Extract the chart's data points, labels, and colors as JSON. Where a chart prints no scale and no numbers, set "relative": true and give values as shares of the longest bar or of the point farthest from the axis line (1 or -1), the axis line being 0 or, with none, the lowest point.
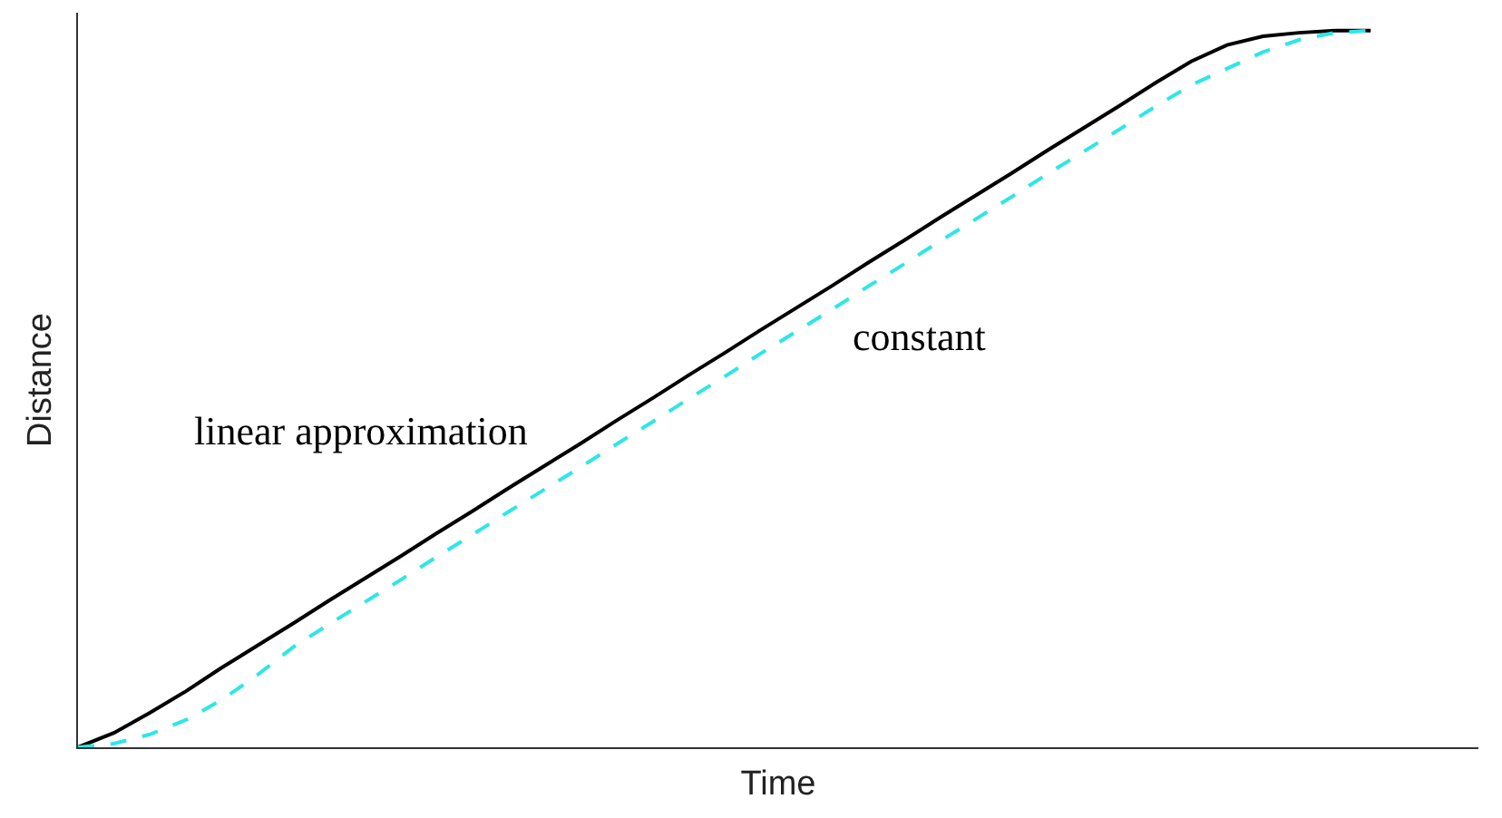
{
  "chart_data": {
    "type": "line",
    "relative": true,
    "xlabel": "Time",
    "ylabel": "Distance",
    "marker": "none",
    "categories": [
      null,
      null,
      null,
      null,
      null,
      null,
      null,
      null,
      null,
      null,
      null,
      null,
      null,
      null,
      null,
      null,
      null,
      null,
      null,
      null,
      null,
      null,
      null,
      null,
      null,
      null,
      null,
      null,
      null,
      null,
      null,
      null,
      null,
      null,
      null,
      null,
      null,
      null,
      null,
      null
    ],
    "series": [
      {
        "color": "#000000",
        "line_style": "solid",
        "values": [
          0,
          0.02,
          0.048,
          0.078,
          0.111,
          0.142,
          0.173,
          0.205,
          0.236,
          0.267,
          0.299,
          0.33,
          0.362,
          0.393,
          0.424,
          0.456,
          0.487,
          0.519,
          0.55,
          0.582,
          0.613,
          0.644,
          0.676,
          0.707,
          0.739,
          0.77,
          0.801,
          0.833,
          0.864,
          0.895,
          0.927,
          0.957,
          0.98,
          0.992,
          0.997,
          1,
          1,
          null,
          null,
          null
        ]
      },
      {
        "color": "#2ee6e6",
        "line_style": "dashed",
        "values": [
          0,
          0.005,
          0.018,
          0.038,
          0.066,
          0.101,
          0.14,
          0.172,
          0.203,
          0.234,
          0.266,
          0.297,
          0.329,
          0.36,
          0.391,
          0.423,
          0.454,
          0.486,
          0.517,
          0.549,
          0.58,
          0.611,
          0.643,
          0.674,
          0.706,
          0.737,
          0.768,
          0.8,
          0.831,
          0.862,
          0.894,
          0.924,
          0.947,
          0.97,
          0.987,
          0.997,
          1,
          null,
          null,
          null
        ]
      }
    ],
    "annotations": [
      "linear approximation",
      "constant"
    ]
  }
}
